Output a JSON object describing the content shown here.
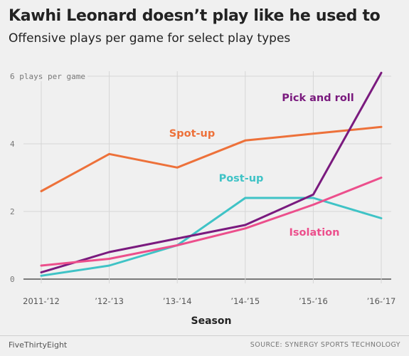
{
  "header": {
    "title": "Kawhi Leonard doesn’t play like he used to",
    "subtitle": "Offensive plays per game for select play types"
  },
  "footer": {
    "brand": "FiveThirtyEight",
    "source": "SOURCE: SYNERGY SPORTS TECHNOLOGY"
  },
  "chart_data": {
    "type": "line",
    "title": "Kawhi Leonard doesn’t play like he used to",
    "subtitle": "Offensive plays per game for select play types",
    "xlabel": "Season",
    "ylabel": "plays per game",
    "categories": [
      "2011-’12",
      "’12-’13",
      "’13-’14",
      "’14-’15",
      "’15-’16",
      "’16-’17"
    ],
    "ylim": [
      0,
      6
    ],
    "yticks": [
      0,
      2,
      4,
      6
    ],
    "ytick_labels": [
      "0",
      "2",
      "4",
      "6 plays per game"
    ],
    "grid": true,
    "series": [
      {
        "name": "Spot-up",
        "color": "#ed713a",
        "values": [
          2.6,
          3.7,
          3.3,
          4.1,
          4.3,
          4.5
        ]
      },
      {
        "name": "Post-up",
        "color": "#3fc3c6",
        "values": [
          0.1,
          0.4,
          1.0,
          2.4,
          2.4,
          1.8
        ]
      },
      {
        "name": "Pick and roll",
        "color": "#7a1a7e",
        "values": [
          0.2,
          0.8,
          1.2,
          1.6,
          2.5,
          6.1
        ]
      },
      {
        "name": "Isolation",
        "color": "#ec4f8c",
        "values": [
          0.4,
          0.6,
          1.0,
          1.5,
          2.2,
          3.0
        ]
      }
    ]
  }
}
